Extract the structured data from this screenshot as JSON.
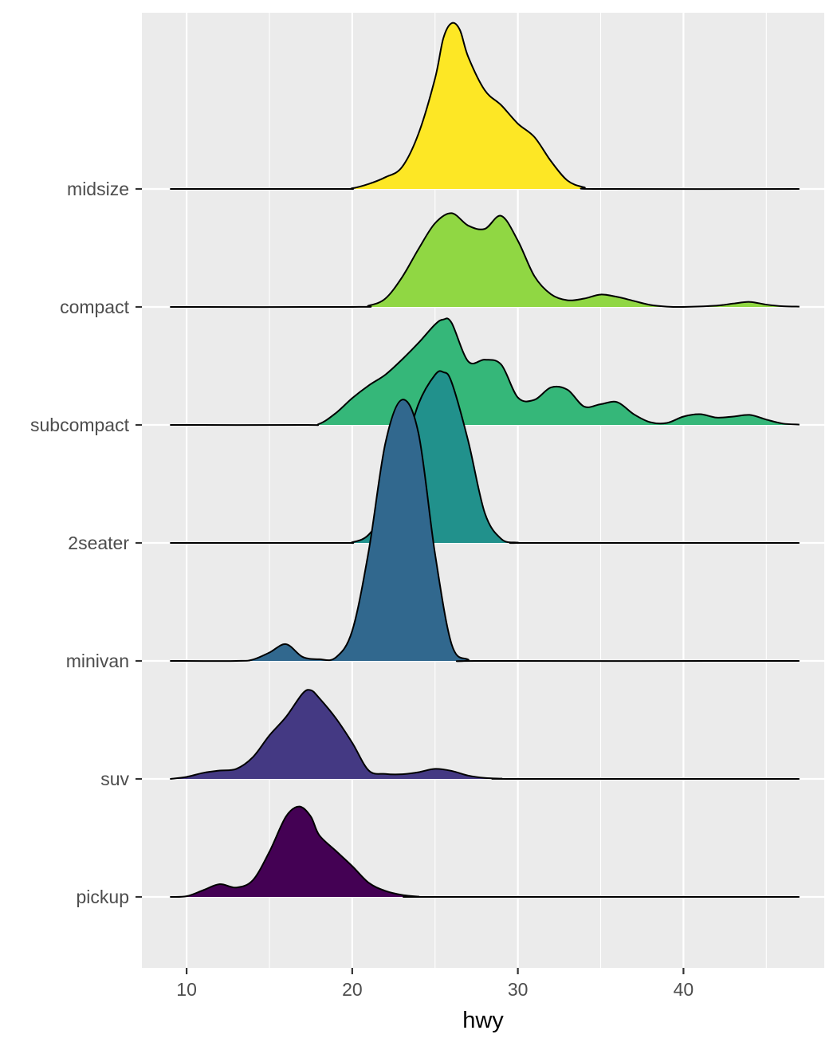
{
  "chart_data": {
    "type": "ridgeline",
    "title": "",
    "xlabel": "hwy",
    "ylabel": "",
    "xlim": [
      7.3,
      48.5
    ],
    "x_ticks": [
      10,
      20,
      30,
      40
    ],
    "density_range": [
      9,
      47
    ],
    "grid": true,
    "background": "#ebebeb",
    "grid_color": "#ffffff",
    "categories": [
      "pickup",
      "suv",
      "minivan",
      "2seater",
      "subcompact",
      "compact",
      "midsize"
    ],
    "colors": {
      "pickup": "#440154",
      "suv": "#443983",
      "minivan": "#31688e",
      "2seater": "#21918c",
      "subcompact": "#35b779",
      "compact": "#90d743",
      "midsize": "#fde725"
    },
    "series": [
      {
        "name": "pickup",
        "points": [
          [
            9,
            0
          ],
          [
            10,
            0.02
          ],
          [
            11,
            0.2
          ],
          [
            12,
            0.38
          ],
          [
            13,
            0.28
          ],
          [
            14,
            0.5
          ],
          [
            15,
            1.35
          ],
          [
            16,
            2.4
          ],
          [
            16.8,
            2.7
          ],
          [
            17.5,
            2.4
          ],
          [
            18,
            1.85
          ],
          [
            19,
            1.38
          ],
          [
            20,
            0.92
          ],
          [
            21,
            0.42
          ],
          [
            22,
            0.18
          ],
          [
            23,
            0.06
          ],
          [
            24,
            0.01
          ],
          [
            25,
            0
          ],
          [
            47,
            0
          ]
        ]
      },
      {
        "name": "suv",
        "points": [
          [
            9,
            0
          ],
          [
            10,
            0.06
          ],
          [
            11,
            0.18
          ],
          [
            12,
            0.25
          ],
          [
            13,
            0.3
          ],
          [
            14,
            0.65
          ],
          [
            15,
            1.3
          ],
          [
            16,
            1.85
          ],
          [
            17,
            2.55
          ],
          [
            17.5,
            2.65
          ],
          [
            18,
            2.42
          ],
          [
            19,
            1.82
          ],
          [
            20,
            1.08
          ],
          [
            21,
            0.25
          ],
          [
            22,
            0.15
          ],
          [
            23,
            0.14
          ],
          [
            24,
            0.2
          ],
          [
            25,
            0.3
          ],
          [
            26,
            0.24
          ],
          [
            27,
            0.1
          ],
          [
            28,
            0.03
          ],
          [
            29,
            0.01
          ],
          [
            30,
            0
          ],
          [
            47,
            0
          ]
        ]
      },
      {
        "name": "minivan",
        "points": [
          [
            9,
            0
          ],
          [
            13,
            0
          ],
          [
            14,
            0.04
          ],
          [
            15,
            0.25
          ],
          [
            16,
            0.5
          ],
          [
            17,
            0.12
          ],
          [
            18,
            0.05
          ],
          [
            19,
            0.1
          ],
          [
            20,
            0.9
          ],
          [
            21,
            3.3
          ],
          [
            22,
            6.5
          ],
          [
            23,
            7.8
          ],
          [
            24,
            6.8
          ],
          [
            25,
            3.2
          ],
          [
            26,
            0.5
          ],
          [
            27,
            0.04
          ],
          [
            28,
            0
          ],
          [
            47,
            0
          ]
        ]
      },
      {
        "name": "2seater",
        "points": [
          [
            9,
            0
          ],
          [
            19,
            0
          ],
          [
            20,
            0.02
          ],
          [
            21,
            0.25
          ],
          [
            22,
            1.05
          ],
          [
            23,
            2.5
          ],
          [
            24,
            4.15
          ],
          [
            25,
            5.02
          ],
          [
            25.5,
            5.1
          ],
          [
            26,
            4.8
          ],
          [
            27,
            3.05
          ],
          [
            28,
            0.9
          ],
          [
            29,
            0.12
          ],
          [
            30,
            0.01
          ],
          [
            31,
            0
          ],
          [
            47,
            0
          ]
        ]
      },
      {
        "name": "subcompact",
        "points": [
          [
            9,
            0
          ],
          [
            17,
            0
          ],
          [
            18,
            0.03
          ],
          [
            19,
            0.35
          ],
          [
            20,
            0.8
          ],
          [
            21,
            1.18
          ],
          [
            22,
            1.5
          ],
          [
            23,
            1.95
          ],
          [
            24,
            2.45
          ],
          [
            25,
            3.0
          ],
          [
            25.5,
            3.15
          ],
          [
            26,
            3.05
          ],
          [
            27,
            1.9
          ],
          [
            28,
            1.95
          ],
          [
            29,
            1.8
          ],
          [
            30,
            0.82
          ],
          [
            31,
            0.75
          ],
          [
            32,
            1.12
          ],
          [
            33,
            1.05
          ],
          [
            34,
            0.55
          ],
          [
            35,
            0.62
          ],
          [
            36,
            0.68
          ],
          [
            37,
            0.32
          ],
          [
            38,
            0.08
          ],
          [
            39,
            0.06
          ],
          [
            40,
            0.25
          ],
          [
            41,
            0.32
          ],
          [
            42,
            0.22
          ],
          [
            43,
            0.25
          ],
          [
            44,
            0.3
          ],
          [
            45,
            0.16
          ],
          [
            46,
            0.04
          ],
          [
            47,
            0.01
          ]
        ]
      },
      {
        "name": "compact",
        "points": [
          [
            9,
            0
          ],
          [
            20,
            0
          ],
          [
            21,
            0.04
          ],
          [
            22,
            0.25
          ],
          [
            23,
            0.88
          ],
          [
            24,
            1.73
          ],
          [
            25,
            2.5
          ],
          [
            26,
            2.8
          ],
          [
            27,
            2.43
          ],
          [
            28,
            2.33
          ],
          [
            29,
            2.72
          ],
          [
            30,
            1.98
          ],
          [
            31,
            0.92
          ],
          [
            32,
            0.38
          ],
          [
            33,
            0.2
          ],
          [
            34,
            0.25
          ],
          [
            35,
            0.37
          ],
          [
            36,
            0.3
          ],
          [
            37,
            0.18
          ],
          [
            38,
            0.06
          ],
          [
            39,
            0.01
          ],
          [
            40,
            0
          ],
          [
            42,
            0.04
          ],
          [
            43,
            0.1
          ],
          [
            44,
            0.15
          ],
          [
            45,
            0.07
          ],
          [
            46,
            0.02
          ],
          [
            47,
            0.01
          ]
        ]
      },
      {
        "name": "midsize",
        "points": [
          [
            9,
            0
          ],
          [
            19,
            0
          ],
          [
            20,
            0.02
          ],
          [
            21,
            0.15
          ],
          [
            22,
            0.35
          ],
          [
            23,
            0.65
          ],
          [
            24,
            1.65
          ],
          [
            25,
            3.3
          ],
          [
            25.5,
            4.5
          ],
          [
            26,
            4.95
          ],
          [
            26.5,
            4.75
          ],
          [
            27,
            3.95
          ],
          [
            28,
            2.95
          ],
          [
            29,
            2.5
          ],
          [
            30,
            1.95
          ],
          [
            31,
            1.55
          ],
          [
            32,
            0.83
          ],
          [
            33,
            0.25
          ],
          [
            34,
            0.05
          ],
          [
            35,
            0
          ],
          [
            47,
            0
          ]
        ]
      }
    ]
  }
}
